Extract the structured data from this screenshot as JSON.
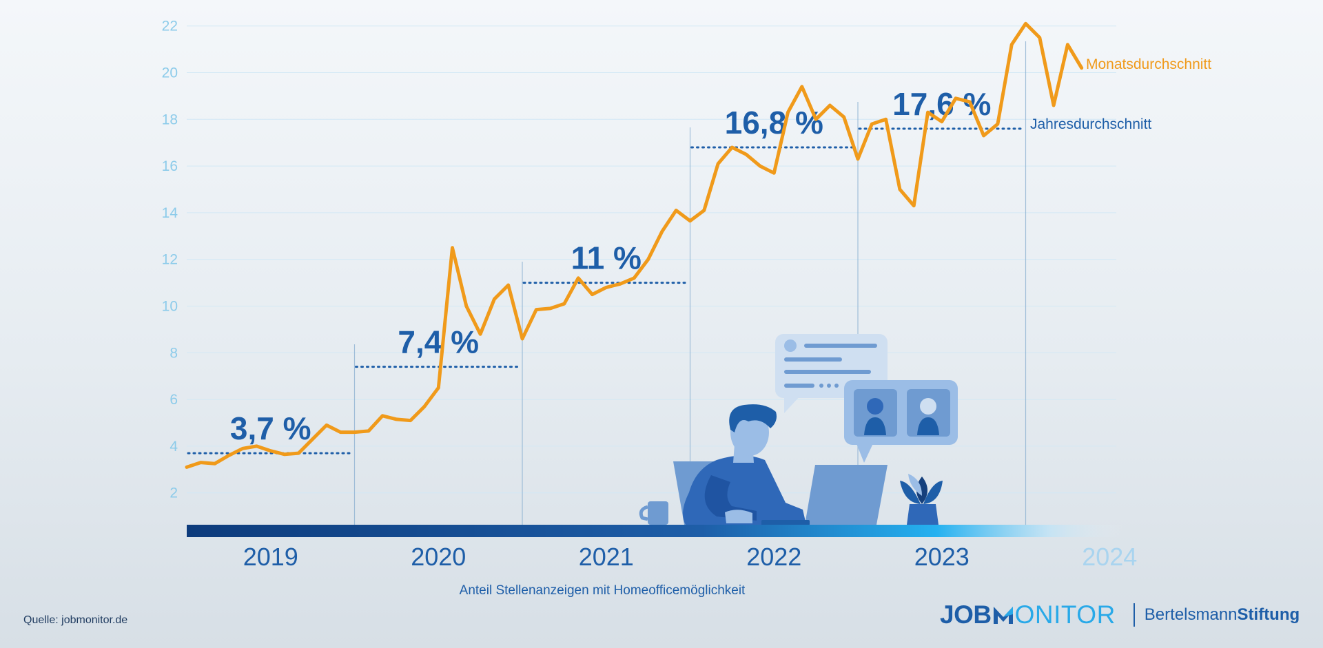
{
  "chart_data": {
    "type": "line",
    "caption": "Anteil Stellenanzeigen mit Homeofficemöglichkeit",
    "yticks": [
      2,
      4,
      6,
      8,
      10,
      12,
      14,
      16,
      18,
      20,
      22
    ],
    "ylim": [
      0,
      22
    ],
    "xticks": [
      "2019",
      "2020",
      "2021",
      "2022",
      "2023",
      "2024"
    ],
    "grid": "horizontal",
    "series": [
      {
        "name": "Monatsdurchschnitt",
        "color": "#f09a1a",
        "values": [
          3.1,
          3.3,
          3.25,
          3.6,
          3.9,
          4.0,
          3.8,
          3.65,
          3.7,
          4.3,
          4.9,
          4.6,
          4.6,
          4.65,
          5.3,
          5.15,
          5.1,
          5.7,
          6.5,
          12.5,
          10.0,
          8.8,
          10.3,
          10.9,
          8.6,
          9.85,
          9.9,
          10.1,
          11.2,
          10.5,
          10.8,
          10.95,
          11.2,
          12.0,
          13.2,
          14.1,
          13.65,
          14.1,
          16.1,
          16.8,
          16.5,
          16.0,
          15.7,
          18.3,
          19.4,
          18.0,
          18.6,
          18.1,
          16.3,
          17.8,
          18.0,
          15.0,
          14.3,
          18.3,
          17.9,
          18.9,
          18.75,
          17.3,
          17.8,
          21.2,
          22.1,
          21.5,
          18.6,
          21.2,
          20.2
        ]
      },
      {
        "name": "Jahresdurchschnitt",
        "color": "#1e5ea8",
        "annual": [
          {
            "year": "2019",
            "value": 3.7,
            "label": "3,7 %"
          },
          {
            "year": "2020",
            "value": 7.4,
            "label": "7,4 %"
          },
          {
            "year": "2021",
            "value": 11.0,
            "label": "11 %"
          },
          {
            "year": "2022",
            "value": 16.8,
            "label": "16,8 %"
          },
          {
            "year": "2023",
            "value": 17.6,
            "label": "17,6 %"
          }
        ]
      }
    ]
  },
  "source": "Quelle: jobmonitor.de",
  "logo": {
    "job": "JOB",
    "monitor": "ONITOR",
    "bertelsmann": "Bertelsmann",
    "stiftung": "Stiftung"
  }
}
